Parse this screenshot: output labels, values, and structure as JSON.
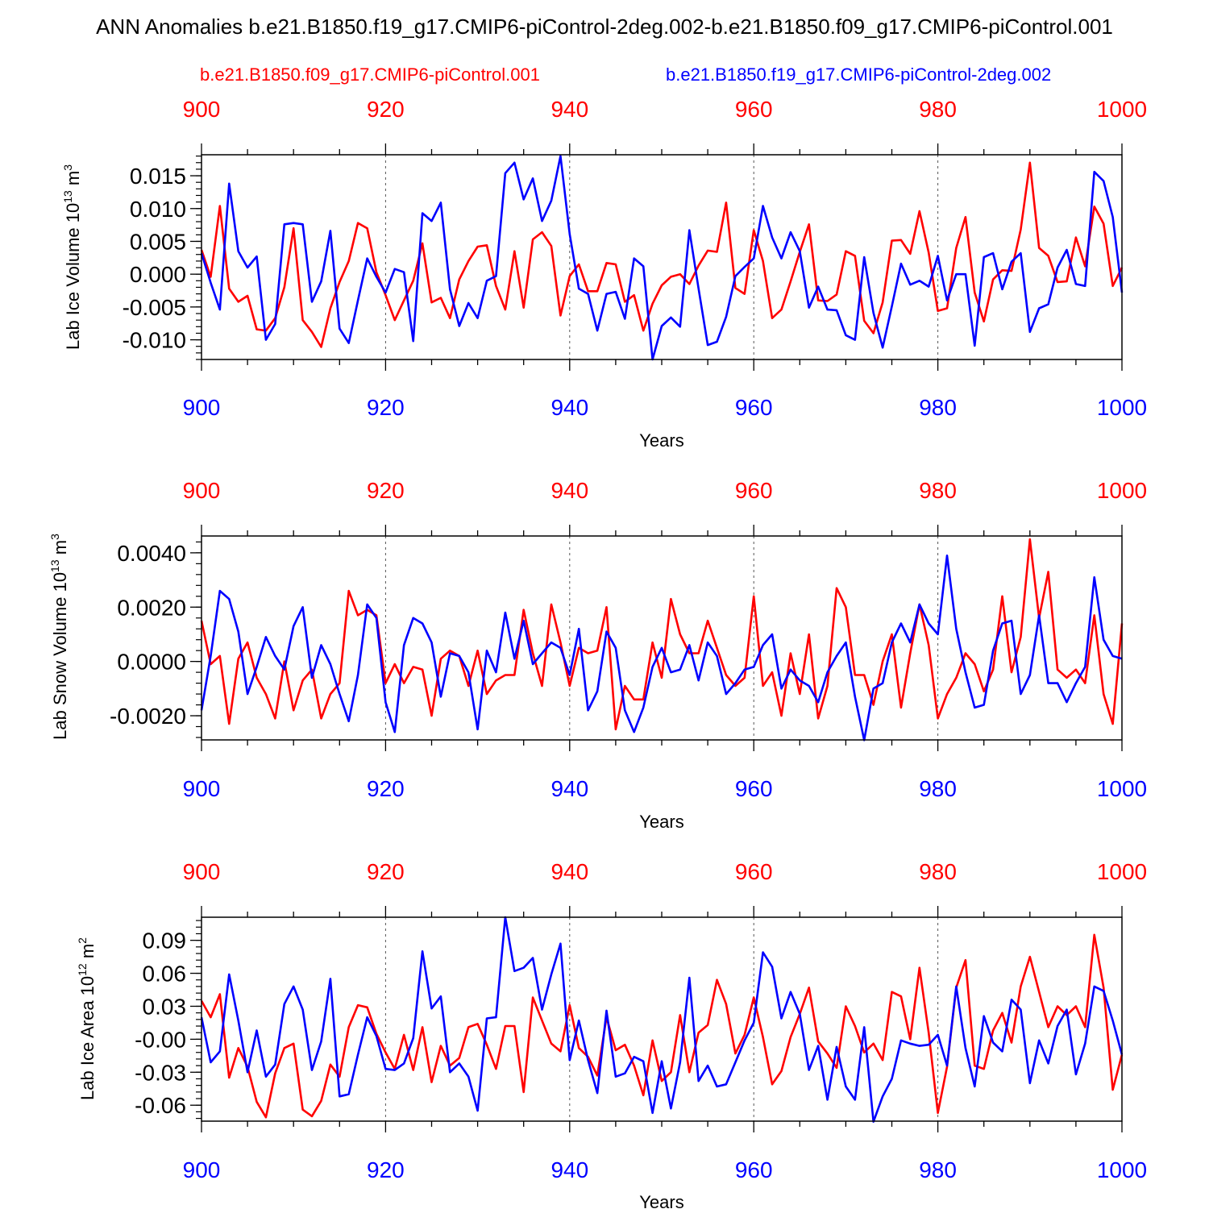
{
  "title": "ANN Anomalies b.e21.B1850.f19_g17.CMIP6-piControl-2deg.002-b.e21.B1850.f09_g17.CMIP6-piControl.001",
  "legend": {
    "red": "b.e21.B1850.f09_g17.CMIP6-piControl.001",
    "blue": "b.e21.B1850.f19_g17.CMIP6-piControl-2deg.002"
  },
  "colors": {
    "red": "#ff0000",
    "blue": "#0000ff"
  },
  "chart_data": [
    {
      "type": "line",
      "ylabel": "Lab Ice Volume 10",
      "ylabel_exp": "13",
      "ylabel_unit": " m",
      "ylabel_unit_exp": "3",
      "xlabel": "Years",
      "xlim": [
        900,
        1000
      ],
      "ylim": [
        -0.013,
        0.0182
      ],
      "xticks": [
        "900",
        "920",
        "940",
        "960",
        "980",
        "1000"
      ],
      "yticks": [
        {
          "v": 0.015,
          "label": "0.015"
        },
        {
          "v": 0.01,
          "label": "0.010"
        },
        {
          "v": 0.005,
          "label": "0.005"
        },
        {
          "v": 0.0,
          "label": "0.000"
        },
        {
          "v": -0.005,
          "label": "-0.005"
        },
        {
          "v": -0.01,
          "label": "-0.010"
        }
      ],
      "yminor": 0.001,
      "series": [
        {
          "name": "b.e21.B1850.f09_g17.CMIP6-piControl.001",
          "color": "red",
          "values": [
            0.0037,
            -0.0004,
            0.0104,
            -0.0022,
            -0.0042,
            -0.0033,
            -0.0084,
            -0.0086,
            -0.0067,
            -0.002,
            0.007,
            -0.007,
            -0.0088,
            -0.0111,
            -0.0052,
            -0.0012,
            0.002,
            0.0078,
            0.007,
            0.0003,
            -0.0032,
            -0.007,
            -0.004,
            -0.001,
            0.0047,
            -0.0043,
            -0.0036,
            -0.0067,
            -0.0008,
            0.002,
            0.0042,
            0.0044,
            -0.0018,
            -0.0054,
            0.0035,
            -0.0051,
            0.0053,
            0.0064,
            0.0043,
            -0.0063,
            -0.0003,
            0.0015,
            -0.0026,
            -0.0026,
            0.0017,
            0.0015,
            -0.0042,
            -0.0032,
            -0.0086,
            -0.0045,
            -0.0017,
            -0.0004,
            0.0,
            -0.0015,
            0.0013,
            0.0036,
            0.0034,
            0.0109,
            -0.0021,
            -0.003,
            0.0067,
            0.002,
            -0.0067,
            -0.0054,
            -0.0011,
            0.0034,
            0.0076,
            -0.004,
            -0.0041,
            -0.0031,
            0.0035,
            0.0028,
            -0.0071,
            -0.009,
            -0.0043,
            0.0051,
            0.0052,
            0.0031,
            0.0096,
            0.0033,
            -0.0056,
            -0.0052,
            0.004,
            0.0087,
            -0.0028,
            -0.0072,
            -0.0008,
            0.0006,
            0.0005,
            0.0068,
            0.017,
            0.004,
            0.0028,
            -0.0012,
            -0.0011,
            0.0056,
            0.0012,
            0.0103,
            0.0077,
            -0.0018,
            0.001
          ]
        },
        {
          "name": "b.e21.B1850.f19_g17.CMIP6-piControl-2deg.002",
          "color": "blue",
          "values": [
            0.0032,
            -0.0013,
            -0.0054,
            0.0138,
            0.0035,
            0.001,
            0.0027,
            -0.01,
            -0.0076,
            0.0076,
            0.0078,
            0.0076,
            -0.0042,
            -0.0011,
            0.0066,
            -0.0083,
            -0.0105,
            -0.004,
            0.0024,
            -0.0004,
            -0.0028,
            0.0008,
            0.0003,
            -0.0102,
            0.0093,
            0.0081,
            0.0109,
            -0.0023,
            -0.0079,
            -0.0044,
            -0.0067,
            -0.001,
            -0.0003,
            0.0154,
            0.017,
            0.0114,
            0.0146,
            0.0081,
            0.0112,
            0.018,
            0.0061,
            -0.0022,
            -0.003,
            -0.0086,
            -0.003,
            -0.0027,
            -0.0068,
            0.0024,
            0.0012,
            -0.013,
            -0.0079,
            -0.0066,
            -0.008,
            0.0067,
            -0.0022,
            -0.0108,
            -0.0103,
            -0.0065,
            -0.0003,
            0.0011,
            0.0024,
            0.0104,
            0.0056,
            0.0024,
            0.0064,
            0.0035,
            -0.0051,
            -0.0019,
            -0.0054,
            -0.0055,
            -0.0093,
            -0.01,
            0.0026,
            -0.0059,
            -0.0112,
            -0.0049,
            0.0016,
            -0.0016,
            -0.001,
            -0.0019,
            0.0028,
            -0.004,
            0.0,
            0.0,
            -0.0109,
            0.0026,
            0.0032,
            -0.0023,
            0.0019,
            0.0032,
            -0.0088,
            -0.0052,
            -0.0046,
            0.001,
            0.0037,
            -0.0015,
            -0.0018,
            0.0156,
            0.0142,
            0.0087,
            -0.0028
          ]
        }
      ]
    },
    {
      "type": "line",
      "ylabel": "Lab Snow Volume 10",
      "ylabel_exp": "13",
      "ylabel_unit": " m",
      "ylabel_unit_exp": "3",
      "xlabel": "Years",
      "xlim": [
        900,
        1000
      ],
      "ylim": [
        -0.00289,
        0.00462
      ],
      "xticks": [
        "900",
        "920",
        "940",
        "960",
        "980",
        "1000"
      ],
      "yticks": [
        {
          "v": 0.004,
          "label": "0.0040"
        },
        {
          "v": 0.002,
          "label": "0.0020"
        },
        {
          "v": 0.0,
          "label": "0.0000"
        },
        {
          "v": -0.002,
          "label": "-0.0020"
        }
      ],
      "yminor": 0.0004,
      "series": [
        {
          "name": "b.e21.B1850.f09_g17.CMIP6-piControl.001",
          "color": "red",
          "values": [
            0.0015,
            -0.0001,
            0.0002,
            -0.0023,
            0.0001,
            0.0007,
            -0.0006,
            -0.0012,
            -0.0021,
            0.0,
            -0.0018,
            -0.0007,
            -0.0003,
            -0.0021,
            -0.0012,
            -0.0008,
            0.0026,
            0.0017,
            0.0019,
            0.0017,
            -0.0008,
            -0.0001,
            -0.0008,
            -0.0002,
            -0.0003,
            -0.002,
            0.0001,
            0.0004,
            0.0002,
            -0.0009,
            0.0004,
            -0.0012,
            -0.0007,
            -0.0005,
            -0.0005,
            0.0019,
            0.0003,
            -0.0009,
            0.0021,
            0.0007,
            -0.0009,
            0.0005,
            0.0003,
            0.0004,
            0.002,
            -0.0025,
            -0.0009,
            -0.0014,
            -0.0014,
            0.0007,
            -0.0006,
            0.0023,
            0.001,
            0.0003,
            0.0003,
            0.0015,
            0.0005,
            -0.0005,
            -0.0009,
            -0.0006,
            0.0024,
            -0.0009,
            -0.0004,
            -0.002,
            0.0003,
            -0.0012,
            0.001,
            -0.0021,
            -0.0009,
            0.0027,
            0.002,
            -0.0005,
            -0.0005,
            -0.0016,
            0.0,
            0.001,
            -0.0017,
            0.0003,
            0.0021,
            0.0006,
            -0.0021,
            -0.0012,
            -0.0006,
            0.0003,
            -0.0001,
            -0.0011,
            -0.0003,
            0.0024,
            -0.0004,
            0.0009,
            0.0045,
            0.0016,
            0.0033,
            -0.0003,
            -0.0006,
            -0.0003,
            -0.0008,
            0.0017,
            -0.0012,
            -0.0023,
            0.0014
          ]
        },
        {
          "name": "b.e21.B1850.f19_g17.CMIP6-piControl-2deg.002",
          "color": "blue",
          "values": [
            -0.0018,
            0.0002,
            0.0026,
            0.0023,
            0.0011,
            -0.0012,
            -0.0002,
            0.0009,
            0.0002,
            -0.0003,
            0.0013,
            0.002,
            -0.0006,
            0.0006,
            -0.0001,
            -0.0012,
            -0.0022,
            -0.0005,
            0.0021,
            0.0016,
            -0.0015,
            -0.0026,
            0.0006,
            0.0016,
            0.0014,
            0.0007,
            -0.0013,
            0.0003,
            0.0002,
            -0.0004,
            -0.0025,
            0.0004,
            -0.0004,
            0.0018,
            0.0001,
            0.0015,
            -0.0001,
            0.0003,
            0.0007,
            0.0005,
            -0.0005,
            0.0012,
            -0.0018,
            -0.0011,
            0.0011,
            0.0005,
            -0.0018,
            -0.0026,
            -0.0017,
            -0.0002,
            0.0005,
            -0.0004,
            -0.0003,
            0.0006,
            -0.0007,
            0.0007,
            0.0002,
            -0.0012,
            -0.0008,
            -0.0003,
            -0.0002,
            0.0006,
            0.001,
            -0.001,
            -0.0003,
            -0.0007,
            -0.0009,
            -0.0015,
            -0.0004,
            0.0002,
            0.0007,
            -0.0013,
            -0.0029,
            -0.001,
            -0.0008,
            0.0007,
            0.0014,
            0.0007,
            0.0021,
            0.0014,
            0.001,
            0.0039,
            0.0012,
            -0.0004,
            -0.0017,
            -0.0016,
            0.0004,
            0.0014,
            0.0015,
            -0.0012,
            -0.0005,
            0.0017,
            -0.0008,
            -0.0008,
            -0.0015,
            -0.0008,
            -0.0002,
            0.0031,
            0.0008,
            0.0002,
            0.0001
          ]
        }
      ]
    },
    {
      "type": "line",
      "ylabel": "Lab Ice Area 10",
      "ylabel_exp": "12",
      "ylabel_unit": " m",
      "ylabel_unit_exp": "2",
      "xlabel": "Years",
      "xlim": [
        900,
        1000
      ],
      "ylim": [
        -0.0745,
        0.111
      ],
      "xticks": [
        "900",
        "920",
        "940",
        "960",
        "980",
        "1000"
      ],
      "yticks": [
        {
          "v": 0.09,
          "label": "0.09"
        },
        {
          "v": 0.06,
          "label": "0.06"
        },
        {
          "v": 0.03,
          "label": "0.03"
        },
        {
          "v": 0.0,
          "label": "-0.00"
        },
        {
          "v": -0.03,
          "label": "-0.03"
        },
        {
          "v": -0.06,
          "label": "-0.06"
        }
      ],
      "yminor": 0.006,
      "series": [
        {
          "name": "b.e21.B1850.f09_g17.CMIP6-piControl.001",
          "color": "red",
          "values": [
            0.035,
            0.02,
            0.041,
            -0.035,
            -0.008,
            -0.025,
            -0.057,
            -0.071,
            -0.031,
            -0.008,
            -0.004,
            -0.064,
            -0.07,
            -0.056,
            -0.023,
            -0.034,
            0.011,
            0.031,
            0.029,
            0.005,
            -0.012,
            -0.027,
            0.004,
            -0.028,
            0.011,
            -0.039,
            -0.006,
            -0.024,
            -0.017,
            0.011,
            0.014,
            -0.005,
            -0.027,
            0.012,
            0.012,
            -0.048,
            0.038,
            0.017,
            -0.004,
            -0.011,
            0.031,
            -0.008,
            -0.016,
            -0.033,
            0.02,
            -0.01,
            -0.005,
            -0.024,
            -0.051,
            -0.001,
            -0.038,
            -0.03,
            0.022,
            -0.03,
            0.006,
            0.013,
            0.054,
            0.032,
            -0.013,
            0.004,
            0.038,
            0.002,
            -0.041,
            -0.029,
            0.002,
            0.023,
            0.047,
            -0.002,
            -0.013,
            -0.026,
            0.03,
            0.012,
            -0.012,
            -0.004,
            -0.019,
            0.043,
            0.039,
            0.0,
            0.065,
            0.006,
            -0.067,
            -0.025,
            0.047,
            0.072,
            -0.024,
            -0.027,
            0.008,
            0.024,
            -0.003,
            0.048,
            0.075,
            0.043,
            0.011,
            0.03,
            0.022,
            0.03,
            0.011,
            0.095,
            0.047,
            -0.046,
            -0.014
          ]
        },
        {
          "name": "b.e21.B1850.f19_g17.CMIP6-piControl-2deg.002",
          "color": "blue",
          "values": [
            0.02,
            -0.021,
            -0.011,
            0.059,
            0.017,
            -0.03,
            0.008,
            -0.034,
            -0.023,
            0.032,
            0.048,
            0.027,
            -0.028,
            -0.002,
            0.055,
            -0.052,
            -0.05,
            -0.014,
            0.02,
            0.003,
            -0.027,
            -0.028,
            -0.022,
            0.001,
            0.08,
            0.028,
            0.039,
            -0.03,
            -0.022,
            -0.034,
            -0.065,
            0.019,
            0.02,
            0.111,
            0.062,
            0.065,
            0.074,
            0.027,
            0.059,
            0.087,
            -0.019,
            0.017,
            -0.019,
            -0.049,
            0.026,
            -0.034,
            -0.031,
            -0.016,
            -0.02,
            -0.067,
            -0.02,
            -0.063,
            -0.021,
            0.056,
            -0.038,
            -0.024,
            -0.043,
            -0.041,
            -0.021,
            -0.001,
            0.015,
            0.079,
            0.066,
            0.019,
            0.043,
            0.023,
            -0.028,
            -0.006,
            -0.055,
            -0.007,
            -0.043,
            -0.055,
            0.011,
            -0.075,
            -0.052,
            -0.036,
            -0.001,
            -0.004,
            -0.006,
            -0.005,
            0.004,
            -0.024,
            0.048,
            -0.008,
            -0.043,
            0.021,
            -0.003,
            -0.011,
            0.036,
            0.027,
            -0.04,
            -0.001,
            -0.022,
            0.012,
            0.027,
            -0.032,
            -0.004,
            0.048,
            0.044,
            0.017,
            -0.014
          ]
        }
      ]
    }
  ]
}
